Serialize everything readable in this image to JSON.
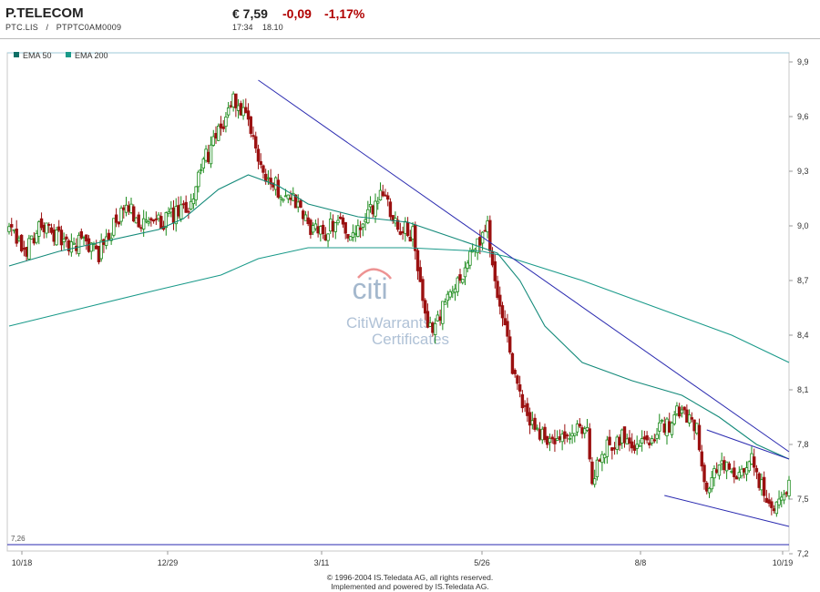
{
  "header": {
    "name": "P.TELECOM",
    "ticker": "PTC.LIS",
    "separator": "/",
    "isin": "PTPTC0AM0009",
    "price": "€ 7,59",
    "change": "-0,09",
    "change_pct": "-1,17%",
    "time": "17:34",
    "date": "18.10"
  },
  "watermark": {
    "logo": "citi",
    "line1": "CitiWarrants",
    "line2": "Certificates"
  },
  "footer": {
    "line1": "© 1996-2004 IS.Teledata AG, all rights reserved.",
    "line2": "Implemented and powered by IS.Teledata AG."
  },
  "colors": {
    "up": "#1a8a1a",
    "down": "#9b1010",
    "ema": "#1a9a8a",
    "trend": "#2a2ab0",
    "negative": "#b00000"
  },
  "chart_data": {
    "type": "candlestick",
    "legend": [
      "EMA 50",
      "EMA 200"
    ],
    "legend_position": "top-left",
    "x_ticks": [
      "10/18",
      "12/29",
      "3/11",
      "5/26",
      "8/8",
      "10/19"
    ],
    "y_ticks": [
      "9,9",
      "9,6",
      "9,3",
      "9,0",
      "8,7",
      "8,4",
      "8,1",
      "7,8",
      "7,5",
      "7,2"
    ],
    "ylim": [
      7.2,
      9.9
    ],
    "low_marker": "7,26",
    "low_value": 7.26,
    "grid": false,
    "anchor_closes": [
      [
        0,
        8.98
      ],
      [
        6,
        8.85
      ],
      [
        12,
        9.0
      ],
      [
        18,
        8.96
      ],
      [
        24,
        8.88
      ],
      [
        30,
        8.92
      ],
      [
        36,
        8.85
      ],
      [
        42,
        9.0
      ],
      [
        48,
        9.1
      ],
      [
        54,
        9.0
      ],
      [
        60,
        9.02
      ],
      [
        66,
        9.05
      ],
      [
        72,
        9.1
      ],
      [
        78,
        9.35
      ],
      [
        84,
        9.5
      ],
      [
        90,
        9.7
      ],
      [
        96,
        9.55
      ],
      [
        102,
        9.3
      ],
      [
        108,
        9.2
      ],
      [
        114,
        9.15
      ],
      [
        120,
        9.0
      ],
      [
        126,
        8.95
      ],
      [
        132,
        9.05
      ],
      [
        138,
        8.92
      ],
      [
        144,
        9.05
      ],
      [
        150,
        9.2
      ],
      [
        156,
        9.0
      ],
      [
        162,
        8.95
      ],
      [
        168,
        8.4
      ],
      [
        174,
        8.55
      ],
      [
        180,
        8.7
      ],
      [
        186,
        8.85
      ],
      [
        192,
        9.0
      ],
      [
        196,
        8.6
      ],
      [
        200,
        8.35
      ],
      [
        204,
        8.1
      ],
      [
        208,
        7.95
      ],
      [
        214,
        7.85
      ],
      [
        220,
        7.8
      ],
      [
        226,
        7.85
      ],
      [
        232,
        7.9
      ],
      [
        234,
        7.6
      ],
      [
        240,
        7.8
      ],
      [
        246,
        7.85
      ],
      [
        252,
        7.8
      ],
      [
        258,
        7.85
      ],
      [
        264,
        7.9
      ],
      [
        270,
        8.0
      ],
      [
        276,
        7.9
      ],
      [
        280,
        7.55
      ],
      [
        286,
        7.7
      ],
      [
        292,
        7.6
      ],
      [
        298,
        7.7
      ],
      [
        304,
        7.5
      ],
      [
        308,
        7.45
      ],
      [
        313,
        7.59
      ]
    ],
    "ema50": [
      [
        0,
        8.78
      ],
      [
        20,
        8.86
      ],
      [
        40,
        8.92
      ],
      [
        60,
        8.98
      ],
      [
        70,
        9.04
      ],
      [
        84,
        9.2
      ],
      [
        96,
        9.28
      ],
      [
        108,
        9.22
      ],
      [
        120,
        9.12
      ],
      [
        140,
        9.05
      ],
      [
        160,
        9.02
      ],
      [
        175,
        8.95
      ],
      [
        190,
        8.88
      ],
      [
        196,
        8.85
      ],
      [
        205,
        8.7
      ],
      [
        215,
        8.45
      ],
      [
        230,
        8.25
      ],
      [
        250,
        8.15
      ],
      [
        270,
        8.07
      ],
      [
        285,
        7.95
      ],
      [
        300,
        7.8
      ],
      [
        313,
        7.72
      ]
    ],
    "ema200": [
      [
        0,
        8.45
      ],
      [
        30,
        8.55
      ],
      [
        60,
        8.65
      ],
      [
        85,
        8.73
      ],
      [
        100,
        8.82
      ],
      [
        120,
        8.88
      ],
      [
        160,
        8.88
      ],
      [
        190,
        8.86
      ],
      [
        200,
        8.83
      ],
      [
        230,
        8.7
      ],
      [
        260,
        8.55
      ],
      [
        290,
        8.4
      ],
      [
        313,
        8.25
      ]
    ],
    "trendlines": [
      {
        "from": [
          100,
          9.8
        ],
        "to": [
          313,
          7.76
        ]
      },
      {
        "from": [
          280,
          7.88
        ],
        "to": [
          313,
          7.72
        ]
      },
      {
        "from": [
          263,
          7.52
        ],
        "to": [
          313,
          7.35
        ]
      }
    ]
  }
}
